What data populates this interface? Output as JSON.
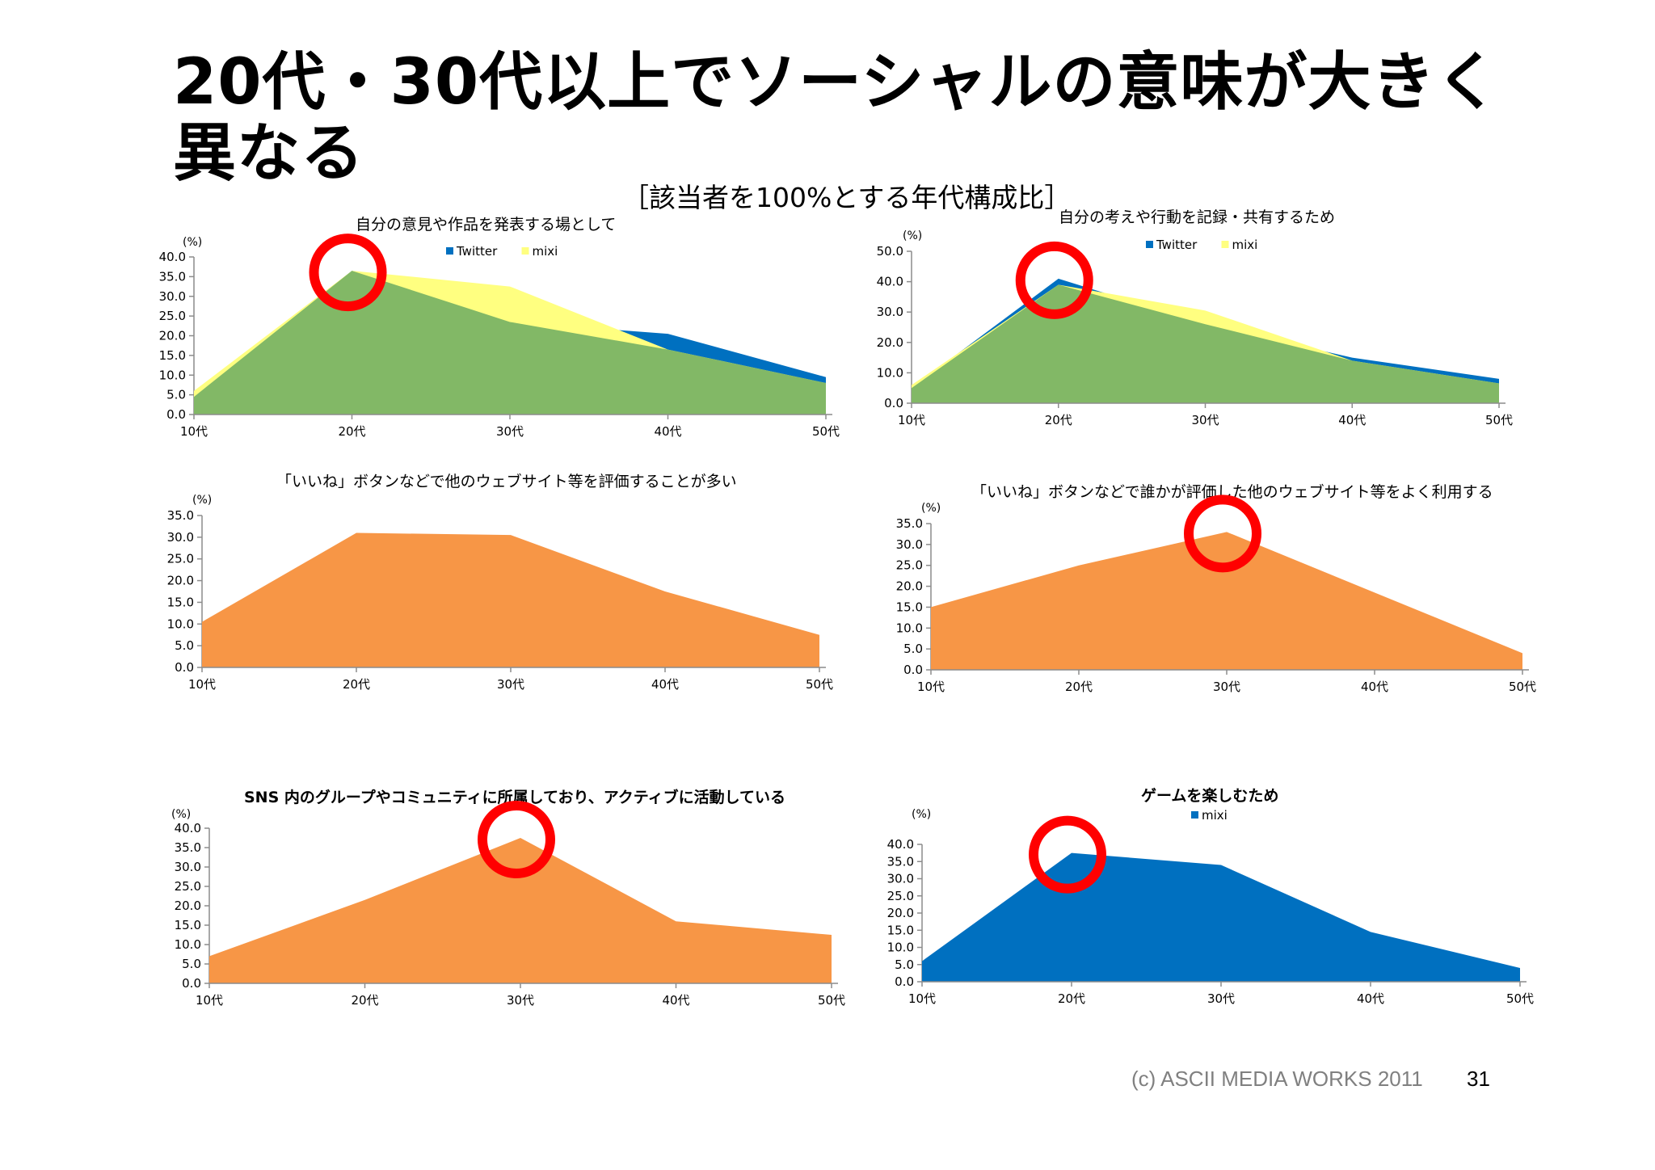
{
  "slide": {
    "title": "20代・30代以上でソーシャルの意味が大きく異なる",
    "subtitle": "［該当者を100%とする年代構成比］",
    "footer_copyright": "(c) ASCII MEDIA WORKS 2011",
    "page_number": "31"
  },
  "colors": {
    "twitter": "#0070C0",
    "mixi": "#FFFF80",
    "overlap": "#82B866",
    "orange": "#F79646",
    "highlight": "#FF0000"
  },
  "chart_data": [
    {
      "type": "area",
      "title": "自分の意見や作品を発表する場として",
      "unit_label": "(%)",
      "categories": [
        "10代",
        "20代",
        "30代",
        "40代",
        "50代"
      ],
      "series": [
        {
          "name": "Twitter",
          "color": "#0070C0",
          "values": [
            4.5,
            36.5,
            23.5,
            20.5,
            9.5
          ]
        },
        {
          "name": "mixi",
          "color": "#FFFF80",
          "values": [
            6.0,
            36.5,
            32.5,
            16.5,
            8.0
          ]
        }
      ],
      "ylim": [
        0,
        40
      ],
      "yticks": [
        "0.0",
        "5.0",
        "10.0",
        "15.0",
        "20.0",
        "25.0",
        "30.0",
        "35.0",
        "40.0"
      ],
      "legend_position": "top-center",
      "highlight_category": "20代"
    },
    {
      "type": "area",
      "title": "自分の考えや行動を記録・共有するため",
      "unit_label": "(%)",
      "categories": [
        "10代",
        "20代",
        "30代",
        "40代",
        "50代"
      ],
      "series": [
        {
          "name": "Twitter",
          "color": "#0070C0",
          "values": [
            5.0,
            41.0,
            26.0,
            15.0,
            8.0
          ]
        },
        {
          "name": "mixi",
          "color": "#FFFF80",
          "values": [
            6.0,
            39.0,
            30.5,
            14.0,
            6.5
          ]
        }
      ],
      "ylim": [
        0,
        50
      ],
      "yticks": [
        "0.0",
        "10.0",
        "20.0",
        "30.0",
        "40.0",
        "50.0"
      ],
      "legend_position": "top-center",
      "highlight_category": "20代"
    },
    {
      "type": "area",
      "title": "「いいね」ボタンなどで他のウェブサイト等を評価することが多い",
      "unit_label": "(%)",
      "categories": [
        "10代",
        "20代",
        "30代",
        "40代",
        "50代"
      ],
      "series": [
        {
          "color": "#F79646",
          "values": [
            10.5,
            31.0,
            30.5,
            17.5,
            7.5
          ]
        }
      ],
      "ylim": [
        0,
        35
      ],
      "yticks": [
        "0.0",
        "5.0",
        "10.0",
        "15.0",
        "20.0",
        "25.0",
        "30.0",
        "35.0"
      ],
      "highlight_category": null
    },
    {
      "type": "area",
      "title": "「いいね」ボタンなどで誰かが評価した他のウェブサイト等をよく利用する",
      "unit_label": "(%)",
      "categories": [
        "10代",
        "20代",
        "30代",
        "40代",
        "50代"
      ],
      "series": [
        {
          "color": "#F79646",
          "values": [
            15.0,
            25.0,
            33.0,
            18.5,
            4.0
          ]
        }
      ],
      "ylim": [
        0,
        35
      ],
      "yticks": [
        "0.0",
        "5.0",
        "10.0",
        "15.0",
        "20.0",
        "25.0",
        "30.0",
        "35.0"
      ],
      "highlight_category": "30代"
    },
    {
      "type": "area",
      "title": "SNS 内のグループやコミュニティに所属しており、アクティブに活動している",
      "unit_label": "(%)",
      "categories": [
        "10代",
        "20代",
        "30代",
        "40代",
        "50代"
      ],
      "series": [
        {
          "color": "#F79646",
          "values": [
            7.0,
            21.5,
            37.5,
            16.0,
            12.5
          ]
        }
      ],
      "ylim": [
        0,
        40
      ],
      "yticks": [
        "0.0",
        "5.0",
        "10.0",
        "15.0",
        "20.0",
        "25.0",
        "30.0",
        "35.0",
        "40.0"
      ],
      "highlight_category": "30代"
    },
    {
      "type": "area",
      "title": "ゲームを楽しむため",
      "unit_label": "(%)",
      "categories": [
        "10代",
        "20代",
        "30代",
        "40代",
        "50代"
      ],
      "series": [
        {
          "name": "mixi",
          "color": "#0070C0",
          "values": [
            6.0,
            37.5,
            34.0,
            14.5,
            4.0
          ]
        }
      ],
      "ylim": [
        0,
        40
      ],
      "yticks": [
        "0.0",
        "5.0",
        "10.0",
        "15.0",
        "20.0",
        "25.0",
        "30.0",
        "35.0",
        "40.0"
      ],
      "legend_position": "top-center",
      "highlight_category": "20代"
    }
  ]
}
